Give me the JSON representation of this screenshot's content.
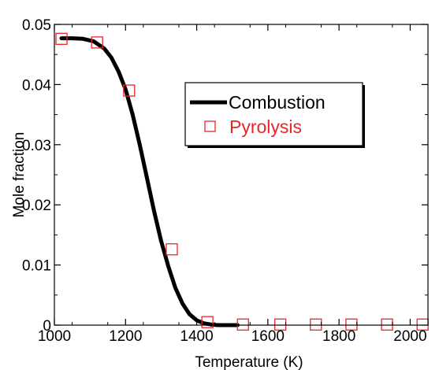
{
  "chart_data": {
    "type": "line",
    "xlabel": "Temperature (K)",
    "ylabel": "Mole fraction",
    "xlim": [
      1000,
      2050
    ],
    "ylim": [
      0,
      0.05
    ],
    "x_ticks": [
      1000,
      1200,
      1400,
      1600,
      1800,
      2000
    ],
    "x_tick_labels": [
      "1000",
      "1200",
      "1400",
      "1600",
      "1800",
      "2000"
    ],
    "y_ticks": [
      0,
      0.01,
      0.02,
      0.03,
      0.04,
      0.05
    ],
    "y_tick_labels": [
      "0",
      "0.01",
      "0.02",
      "0.03",
      "0.04",
      "0.05"
    ],
    "grid": false,
    "legend_placement": "upper-right",
    "series": [
      {
        "name": "Combustion",
        "kind": "line",
        "color": "#000000",
        "x": [
          1020,
          1050,
          1080,
          1110,
          1140,
          1160,
          1180,
          1200,
          1220,
          1240,
          1260,
          1280,
          1300,
          1320,
          1340,
          1360,
          1380,
          1400,
          1420,
          1440,
          1460,
          1480,
          1500,
          1515
        ],
        "y": [
          0.0477,
          0.0477,
          0.0476,
          0.0472,
          0.046,
          0.0445,
          0.0422,
          0.0392,
          0.035,
          0.03,
          0.0245,
          0.019,
          0.014,
          0.0098,
          0.0062,
          0.0036,
          0.0018,
          0.0008,
          0.0003,
          0.0001,
          0.0,
          0.0,
          0.0,
          0.0
        ]
      },
      {
        "name": "Pyrolysis",
        "kind": "markers",
        "marker": "open-square",
        "color": "#e8262a",
        "x": [
          1020,
          1120,
          1210,
          1330,
          1430,
          1530,
          1635,
          1735,
          1835,
          1935,
          2035
        ],
        "y": [
          0.0476,
          0.047,
          0.039,
          0.0126,
          0.0005,
          0.0001,
          0.0001,
          0.0001,
          0.0001,
          0.0001,
          0.0001
        ]
      }
    ]
  }
}
